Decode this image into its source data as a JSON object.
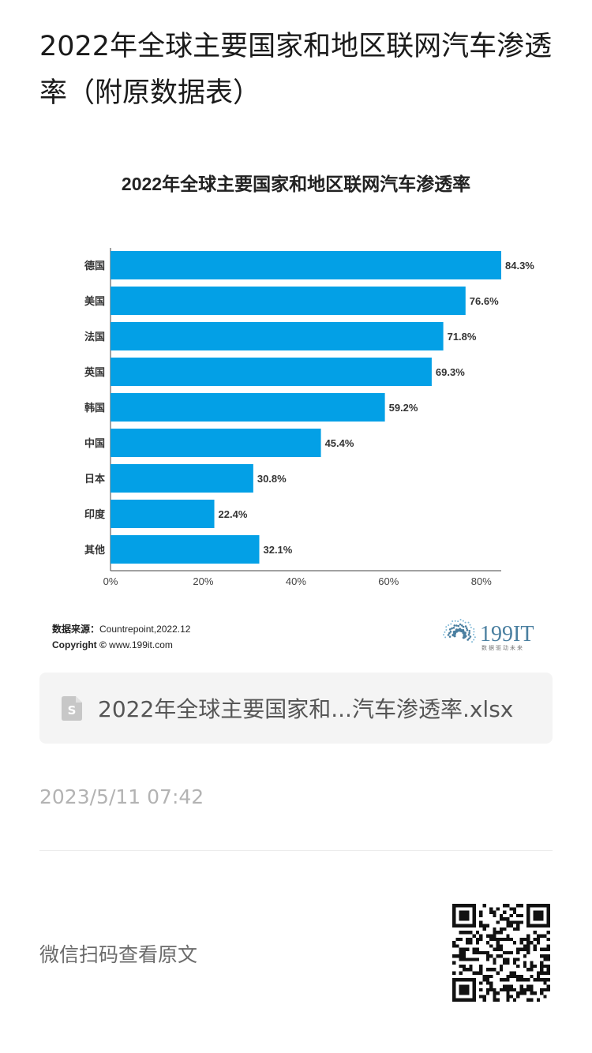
{
  "article": {
    "title": "2022年全球主要国家和地区联网汽车渗透率（附原数据表）"
  },
  "chart_data": {
    "type": "bar",
    "orientation": "horizontal",
    "title": "2022年全球主要国家和地区联网汽车渗透率",
    "categories": [
      "德国",
      "美国",
      "法国",
      "英国",
      "韩国",
      "中国",
      "日本",
      "印度",
      "其他"
    ],
    "values": [
      84.3,
      76.6,
      71.8,
      69.3,
      59.2,
      45.4,
      30.8,
      22.4,
      32.1
    ],
    "data_labels": [
      "84.3%",
      "76.6%",
      "71.8%",
      "69.3%",
      "59.2%",
      "45.4%",
      "30.8%",
      "22.4%",
      "32.1%"
    ],
    "xticks": [
      0,
      20,
      40,
      60,
      80
    ],
    "xtick_labels": [
      "0%",
      "20%",
      "40%",
      "60%",
      "80%"
    ],
    "xlim": [
      0,
      84.3
    ],
    "xlabel": "",
    "ylabel": "",
    "grid": false,
    "bar_color": "#03a0e6",
    "source_label": "数据来源：",
    "source_value": "Countrepoint,2022.12",
    "copyright_label": "Copyright ©",
    "copyright_value": "www.199it.com",
    "brand": "199IT",
    "brand_tagline": "数据驱动未来",
    "brand_color": "#4a7fa0"
  },
  "attachment": {
    "file_name": "2022年全球主要国家和...汽车渗透率.xlsx",
    "icon": "spreadsheet-file-icon"
  },
  "post": {
    "time": "2023/5/11 07:42"
  },
  "footer": {
    "scan_text": "微信扫码查看原文",
    "qr_icon": "qr-code-icon"
  }
}
